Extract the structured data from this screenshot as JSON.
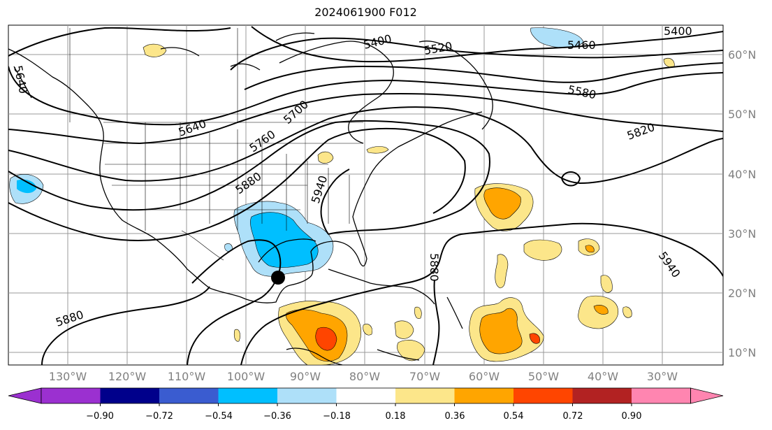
{
  "title": "2024061900 F012",
  "latitude_labels": [
    "60°N",
    "50°N",
    "40°N",
    "30°N",
    "20°N",
    "10°N"
  ],
  "longitude_labels": [
    "130°W",
    "120°W",
    "110°W",
    "100°W",
    "90°W",
    "80°W",
    "70°W",
    "60°W",
    "50°W",
    "40°W",
    "30°W"
  ],
  "contour_labels": [
    "5400",
    "5400",
    "5460",
    "5520",
    "5580",
    "5640",
    "5640",
    "5700",
    "5760",
    "5820",
    "5880",
    "5880",
    "5880",
    "5940",
    "5940"
  ],
  "colorbar": {
    "tick_labels": [
      "−0.90",
      "−0.72",
      "−0.54",
      "−0.36",
      "−0.18",
      "0.18",
      "0.36",
      "0.54",
      "0.72",
      "0.90"
    ],
    "colors": [
      "#9b30d0",
      "#00008b",
      "#3a5cd0",
      "#00bfff",
      "#aee0f9",
      "#ffffff",
      "#fce68a",
      "#ffa500",
      "#ff4500",
      "#b22222",
      "#ff85b0"
    ]
  },
  "colors": {
    "contour": "#000000",
    "grid": "#999999",
    "label_gray": "#808080"
  }
}
